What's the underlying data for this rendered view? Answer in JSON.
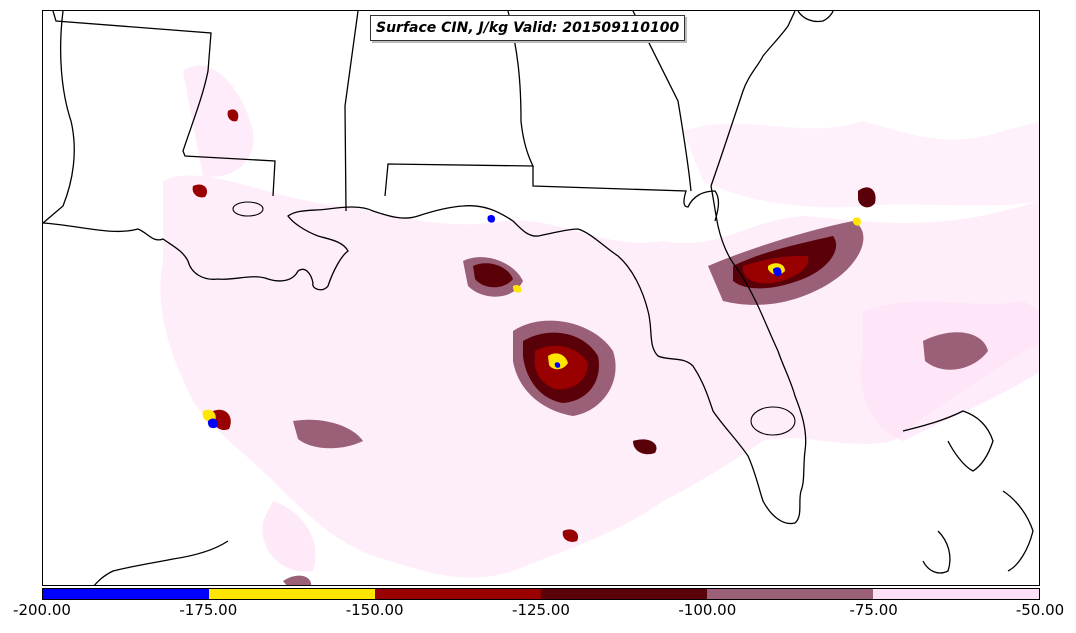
{
  "title": "Surface CIN, J/kg Valid: 201509110100",
  "colorbar": {
    "colors": [
      "#0000ff",
      "#ffe600",
      "#990000",
      "#5a0008",
      "#9a6077",
      "#fde0f6"
    ],
    "ticks": [
      "-200.00",
      "-175.00",
      "-150.00",
      "-125.00",
      "-100.00",
      "-75.00",
      "-50.00"
    ]
  },
  "map": {
    "region": "Gulf of Mexico / Southeastern US",
    "boundary_color": "#000000",
    "field_colors": {
      "light": "#fde0f6",
      "medium": "#9a6077",
      "dark": "#5a0008",
      "red": "#990000",
      "yellow": "#ffe600",
      "blue": "#0000ff"
    }
  }
}
